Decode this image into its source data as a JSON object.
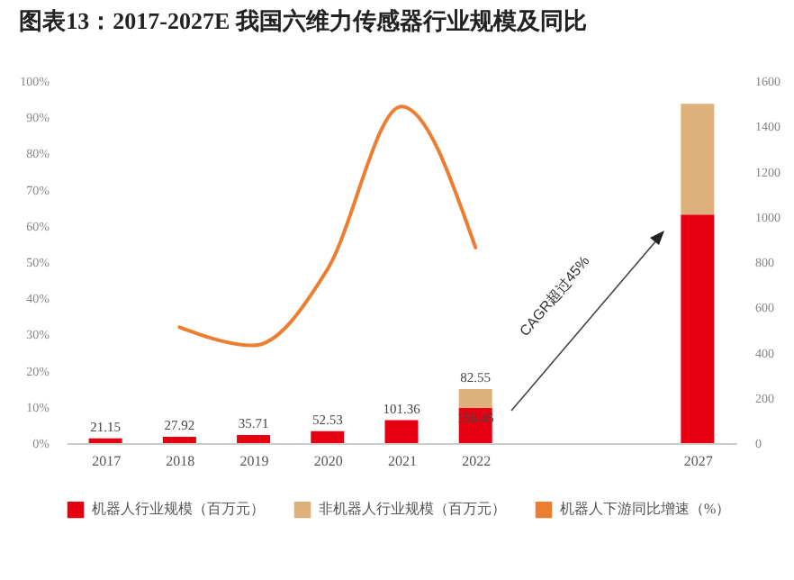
{
  "chart_data": {
    "type": "bar",
    "title": "图表13：2017-2027E 我国六维力传感器行业规模及同比",
    "categories": [
      "2017",
      "2018",
      "2019",
      "2020",
      "2021",
      "2022",
      null,
      null,
      "2027"
    ],
    "stacked": true,
    "series": [
      {
        "name": "机器人行业规模（百万元）",
        "type": "bar",
        "axis": "y2",
        "color": "#e60012",
        "values": [
          21.15,
          27.92,
          35.71,
          52.53,
          101.36,
          156.45,
          null,
          null,
          1010
        ],
        "value_labels": [
          "21.15",
          "27.92",
          "35.71",
          "52.53",
          "101.36",
          "156.45",
          null,
          null,
          null
        ]
      },
      {
        "name": "非机器人行业规模（百万元）",
        "type": "bar",
        "axis": "y2",
        "color": "#deb07c",
        "values": [
          null,
          null,
          null,
          null,
          null,
          82.55,
          null,
          null,
          490
        ],
        "value_labels": [
          null,
          null,
          null,
          null,
          null,
          "82.55",
          null,
          null,
          null
        ]
      },
      {
        "name": "机器人下游同比增速（%）",
        "type": "line",
        "color": "#ed7d31",
        "values": [
          null,
          32,
          27,
          48,
          93,
          54,
          null,
          null,
          null
        ]
      }
    ],
    "ylim": [
      0,
      100
    ],
    "yticks": [
      {
        "value": 0,
        "label": "0%"
      },
      {
        "value": 10,
        "label": "10%"
      },
      {
        "value": 20,
        "label": "20%"
      },
      {
        "value": 30,
        "label": "30%"
      },
      {
        "value": 40,
        "label": "40%"
      },
      {
        "value": 50,
        "label": "50%"
      },
      {
        "value": 60,
        "label": "60%"
      },
      {
        "value": 70,
        "label": "70%"
      },
      {
        "value": 80,
        "label": "80%"
      },
      {
        "value": 90,
        "label": "90%"
      },
      {
        "value": 100,
        "label": "100%"
      }
    ],
    "y2lim": [
      0,
      1600
    ],
    "y2ticks": [
      0,
      200,
      400,
      600,
      800,
      1000,
      1200,
      1400,
      1600
    ],
    "annotations": [
      "CAGR超过45%"
    ],
    "legend": "bottom",
    "grid": false,
    "marker": "none",
    "line_style": "solid"
  }
}
